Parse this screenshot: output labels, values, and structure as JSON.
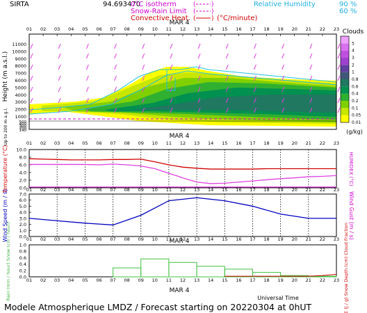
{
  "header": {
    "station": "SIRTA",
    "coords": "94.693470",
    "legend_0c": "0°C isotherm",
    "legend_snowrain": "Snow-Rain Limit",
    "legend_convheat": "Convective Heat.",
    "legend_convheat_unit": "(°C/minute)",
    "legend_rh_label": "Relative Humidity",
    "legend_rh_90": "90 %",
    "legend_rh_60": "60 %"
  },
  "footer": {
    "title": "Modele Atmospherique LMDZ / Forecast starting on 20220304 at 0hUT",
    "universal_time": "Universal Time"
  },
  "hours": [
    "01",
    "02",
    "03",
    "04",
    "05",
    "06",
    "07",
    "08",
    "09",
    "10",
    "11",
    "12",
    "13",
    "14",
    "15",
    "16",
    "17",
    "18",
    "19",
    "20",
    "21",
    "22",
    "23"
  ],
  "date_label": "MAR 4",
  "chart_data": [
    {
      "type": "heatmap",
      "name": "cloud-water-panel",
      "ylabel": "Height (m a.s.l.)",
      "ylabel_low": "Up to 200 m a.g.l.",
      "yticks_upper": [
        11000,
        10000,
        9000,
        8000,
        7000,
        6000,
        5000,
        4000,
        3000,
        2000,
        1000
      ],
      "yticks_lower": [
        500,
        400,
        300,
        200,
        140
      ],
      "colorbar_title": "Clouds",
      "colorbar_unit": "(g/kg)",
      "colorbar_levels": [
        "0.01",
        "0.05",
        "0.1",
        "0.2",
        "0.4",
        "0.6",
        "0.8",
        "1",
        "2",
        "3",
        "4",
        "5"
      ],
      "colorbar_colors": [
        "#ffff00",
        "#c8e600",
        "#80d000",
        "#30b030",
        "#009050",
        "#207860",
        "#405878",
        "#6040a0",
        "#a040d0",
        "#c050e0",
        "#d870f0",
        "#eea0ff"
      ]
    },
    {
      "type": "line",
      "name": "temperature-humidex",
      "ylabel": "Temperature (°C)",
      "ylabel_right": "HUMIDEX (°C)",
      "ylim": [
        0,
        10
      ],
      "yticks": [
        "0.0",
        "2.0",
        "4.0",
        "6.0",
        "8.0",
        "10.0"
      ],
      "x": [
        1,
        2,
        3,
        4,
        5,
        6,
        7,
        8,
        9,
        10,
        11,
        12,
        13,
        14,
        15,
        16,
        17,
        18,
        19,
        20,
        21,
        22,
        23
      ],
      "series": [
        {
          "values": [
            7.6,
            7.5,
            7.4,
            7.3,
            7.3,
            7.3,
            7.4,
            7.4,
            7.5,
            6.8,
            6.0,
            5.4,
            5.1,
            4.9,
            4.9,
            4.9,
            4.9,
            5.0,
            5.0,
            5.0,
            5.0,
            5.0,
            5.0
          ],
          "color": "#d00000"
        },
        {
          "values": [
            6.1,
            6.1,
            6.1,
            6.1,
            6.1,
            6.0,
            6.2,
            6.0,
            5.7,
            5.0,
            3.8,
            2.6,
            1.5,
            1.1,
            1.2,
            1.5,
            1.8,
            2.1,
            2.4,
            2.6,
            2.9,
            3.0,
            3.2
          ],
          "color": "#e040e0"
        },
        {
          "values": [
            0.2,
            0.2,
            0.2,
            0.2,
            0.2,
            0.2,
            0.2,
            0.2,
            0.2,
            0.2,
            0.2,
            0.2,
            0.2,
            0.2,
            0.2,
            0.2,
            0.2,
            0.2,
            0.2,
            0.2,
            0.2,
            0.2,
            0.2
          ],
          "color": "#e040e0"
        }
      ]
    },
    {
      "type": "line",
      "name": "wind-speed",
      "ylabel": "Wind Speed (m / s)",
      "ylabel_right": "Wind Gust (m / s)",
      "ylim": [
        0,
        7
      ],
      "yticks": [
        "0.0",
        "1.0",
        "2.0",
        "3.0",
        "4.0",
        "5.0",
        "6.0",
        "7.0"
      ],
      "x": [
        1,
        3,
        5,
        7,
        9,
        11,
        13,
        15,
        17,
        19,
        21,
        23
      ],
      "series": [
        {
          "values": [
            3.0,
            2.6,
            2.2,
            1.9,
            3.5,
            5.9,
            6.4,
            5.9,
            5.0,
            3.7,
            3.0,
            3.0
          ],
          "color": "#0000c0"
        }
      ]
    },
    {
      "type": "bar",
      "name": "precipitation",
      "ylabel": "Rain (mm / hour) Snow (cm / hour)",
      "ylabel_right": "CAPE (J / g) Snow Depth (cm) Cloud Fraction",
      "ylim": [
        0,
        1
      ],
      "yticks": [
        "0.0",
        "0.2",
        "0.4",
        "0.6",
        "0.8",
        "1.0"
      ],
      "categories": [
        "07",
        "09",
        "11",
        "13",
        "15",
        "17",
        "19",
        "21"
      ],
      "values": [
        0.28,
        0.56,
        0.45,
        0.33,
        0.24,
        0.14,
        0.04,
        0.02
      ],
      "bar_color": "#40c040",
      "cape_line": [
        0.02,
        0.02,
        0.02,
        0.02,
        0.02,
        0.02,
        0.02,
        0.04,
        0.08
      ]
    }
  ],
  "colors": {
    "zero_isotherm": "#d000d0",
    "relative_humidity": "#20c0e0",
    "temperature": "#d00000",
    "wind": "#0000c0",
    "rain": "#40c040"
  }
}
